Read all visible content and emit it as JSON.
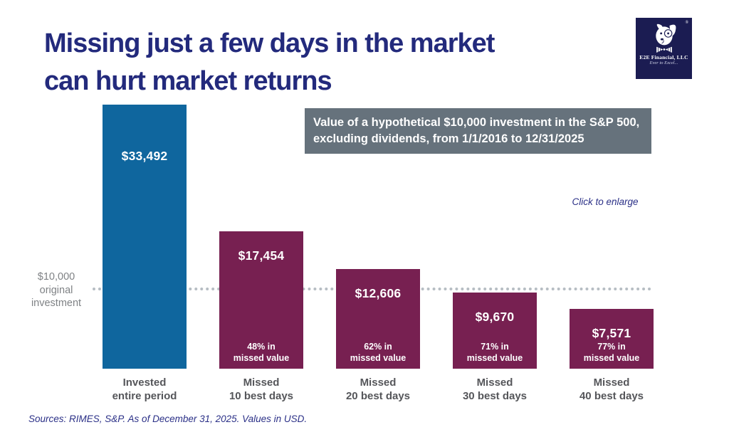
{
  "page": {
    "title_line1": "Missing just a few days in the market",
    "title_line2": "can hurt market returns",
    "click_to_enlarge": "Click to enlarge",
    "footer": "Sources: RIMES, S&P. As of December 31, 2025. Values in USD."
  },
  "logo": {
    "name": "E2E Financial, LLC",
    "tagline": "Ever to Excel...",
    "registered_mark": "®",
    "icon": "dog-with-bowtie"
  },
  "subtitle": {
    "line1": "Value of a hypothetical $10,000 investment in the S&P 500,",
    "line2": "excluding dividends, from 1/1/2016 to 12/31/2025"
  },
  "baseline_label": {
    "line1": "$10,000",
    "line2": "original",
    "line3": "investment"
  },
  "colors": {
    "title_navy": "#232a7c",
    "logo_navy": "#1b1c52",
    "bar_blue": "#0f669e",
    "bar_maroon": "#772051",
    "subtitle_box_gray": "#66727c",
    "axis_label_gray": "#55565a",
    "dotted_line_gray": "#b6bdc3"
  },
  "chart_data": {
    "type": "bar",
    "title": "Value of a hypothetical $10,000 investment in the S&P 500, excluding dividends, from 1/1/2016 to 12/31/2025",
    "xlabel": "",
    "ylabel": "",
    "ylim": [
      0,
      33492
    ],
    "grid": false,
    "legend": "none",
    "baseline_value": 10000,
    "baseline_label": "$10,000 original investment",
    "categories": [
      "Invested entire period",
      "Missed 10 best days",
      "Missed 20 best days",
      "Missed 30 best days",
      "Missed 40 best days"
    ],
    "values": [
      33492,
      17454,
      12606,
      9670,
      7571
    ],
    "bars": [
      {
        "category_lines": [
          "Invested",
          "entire period"
        ],
        "value": 33492,
        "value_label": "$33,492",
        "pct_lines": [],
        "color": "#0f669e"
      },
      {
        "category_lines": [
          "Missed",
          "10 best days"
        ],
        "value": 17454,
        "value_label": "$17,454",
        "pct_lines": [
          "48% in",
          "missed value"
        ],
        "color": "#772051"
      },
      {
        "category_lines": [
          "Missed",
          "20 best days"
        ],
        "value": 12606,
        "value_label": "$12,606",
        "pct_lines": [
          "62% in",
          "missed value"
        ],
        "color": "#772051"
      },
      {
        "category_lines": [
          "Missed",
          "30 best days"
        ],
        "value": 9670,
        "value_label": "$9,670",
        "pct_lines": [
          "71% in",
          "missed value"
        ],
        "color": "#772051"
      },
      {
        "category_lines": [
          "Missed",
          "40 best days"
        ],
        "value": 7571,
        "value_label": "$7,571",
        "pct_lines": [
          "77% in",
          "missed value"
        ],
        "color": "#772051"
      }
    ]
  }
}
